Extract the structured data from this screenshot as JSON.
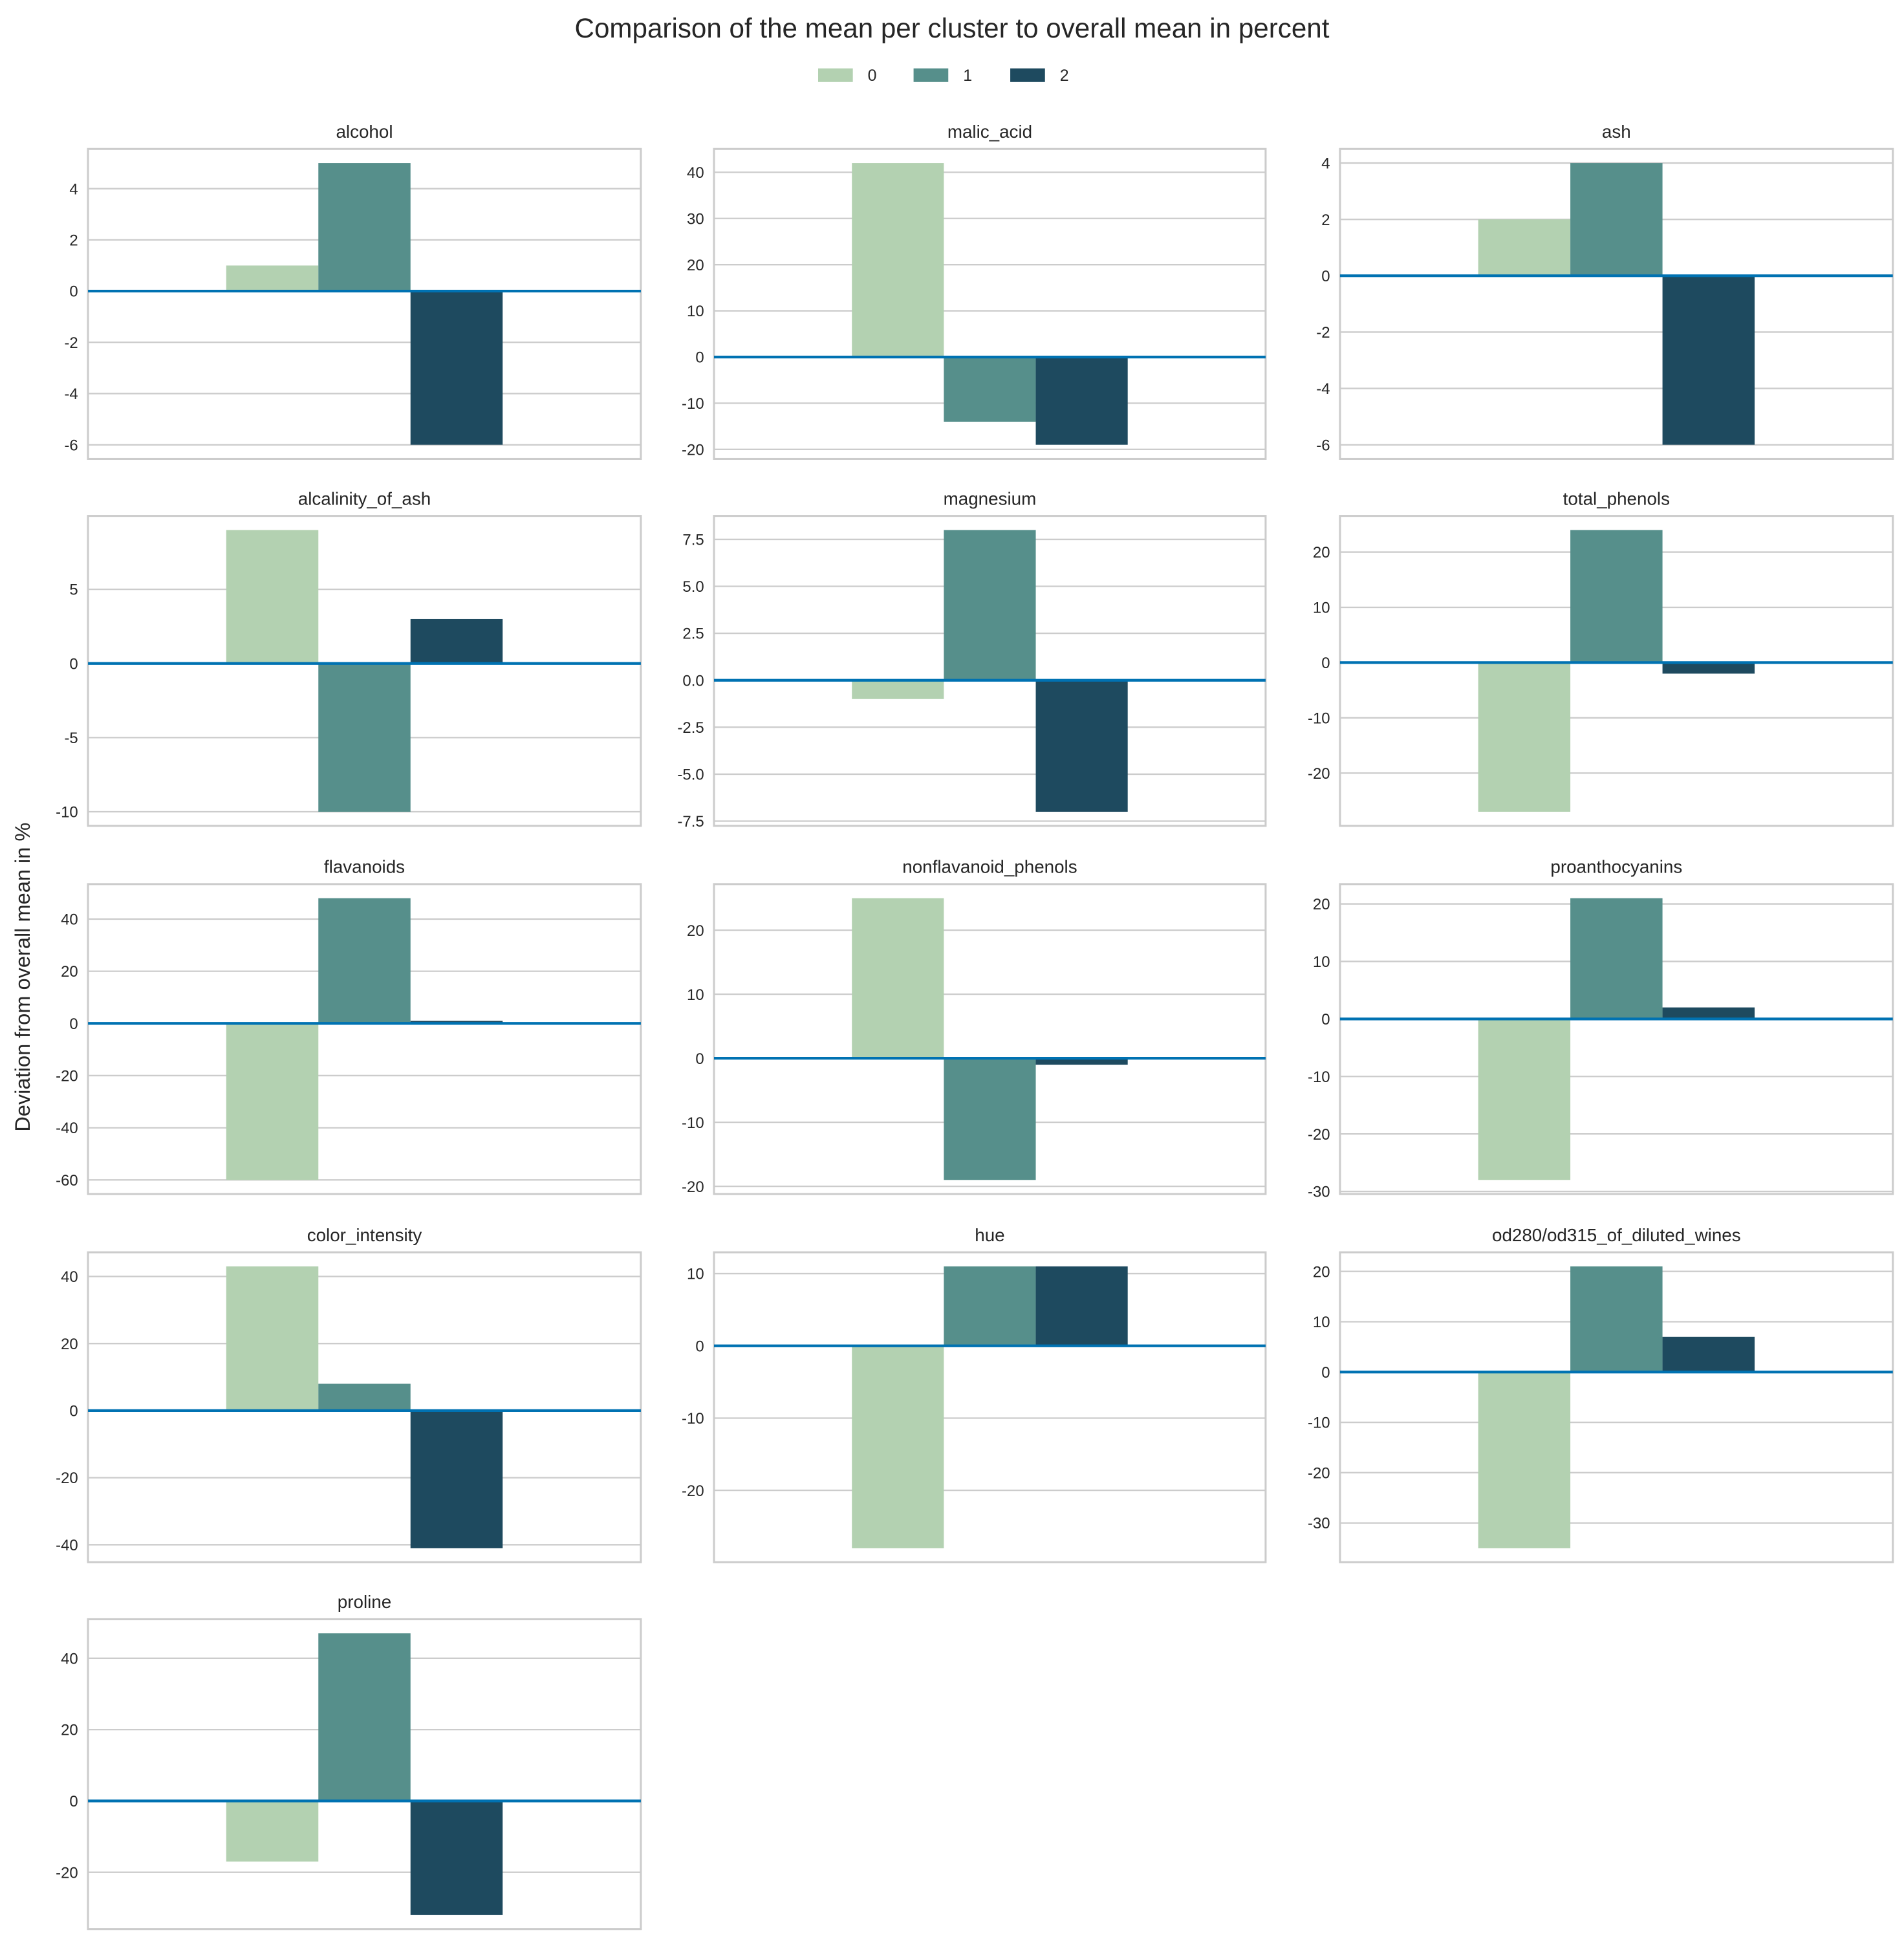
{
  "chart_data": {
    "type": "bar",
    "title": "Comparison of the mean per cluster to overall mean in percent",
    "ylabel": "Deviation from overall mean in %",
    "legend": {
      "placement": "top-center",
      "entries": [
        "0",
        "1",
        "2"
      ]
    },
    "colors": {
      "0": "#b3d1b1",
      "1": "#568f8b",
      "2": "#1e4a5f",
      "zero_line": "#0072b2",
      "grid": "#cccccc"
    },
    "grid": true,
    "panels": [
      {
        "title": "alcohol",
        "values": [
          1,
          5,
          -6
        ],
        "yticks": [
          -6,
          -4,
          -2,
          0,
          2,
          4
        ]
      },
      {
        "title": "malic_acid",
        "values": [
          42,
          -14,
          -19
        ],
        "yticks": [
          -20,
          -10,
          0,
          10,
          20,
          30,
          40
        ]
      },
      {
        "title": "ash",
        "values": [
          2,
          4,
          -6
        ],
        "yticks": [
          -6,
          -4,
          -2,
          0,
          2,
          4
        ]
      },
      {
        "title": "alcalinity_of_ash",
        "values": [
          9,
          -10,
          3
        ],
        "yticks": [
          -10,
          -5,
          0,
          5
        ]
      },
      {
        "title": "magnesium",
        "values": [
          -1,
          8,
          -7
        ],
        "yticks": [
          "-7.5",
          "-5.0",
          "-2.5",
          "0.0",
          "2.5",
          "5.0",
          "7.5"
        ]
      },
      {
        "title": "total_phenols",
        "values": [
          -27,
          24,
          -2
        ],
        "yticks": [
          -20,
          -10,
          0,
          10,
          20
        ]
      },
      {
        "title": "flavanoids",
        "values": [
          -60,
          48,
          1
        ],
        "yticks": [
          -60,
          -40,
          -20,
          0,
          20,
          40
        ]
      },
      {
        "title": "nonflavanoid_phenols",
        "values": [
          25,
          -19,
          -1
        ],
        "yticks": [
          -20,
          -10,
          0,
          10,
          20
        ]
      },
      {
        "title": "proanthocyanins",
        "values": [
          -28,
          21,
          2
        ],
        "yticks": [
          -30,
          -20,
          -10,
          0,
          10,
          20
        ]
      },
      {
        "title": "color_intensity",
        "values": [
          43,
          8,
          -41
        ],
        "yticks": [
          -40,
          -20,
          0,
          20,
          40
        ]
      },
      {
        "title": "hue",
        "values": [
          -28,
          11,
          11
        ],
        "yticks": [
          -20,
          -10,
          0,
          10
        ]
      },
      {
        "title": "od280/od315_of_diluted_wines",
        "values": [
          -35,
          21,
          7
        ],
        "yticks": [
          -30,
          -20,
          -10,
          0,
          10,
          20
        ]
      },
      {
        "title": "proline",
        "values": [
          -17,
          47,
          -32
        ],
        "yticks": [
          -20,
          0,
          20,
          40
        ]
      }
    ]
  }
}
